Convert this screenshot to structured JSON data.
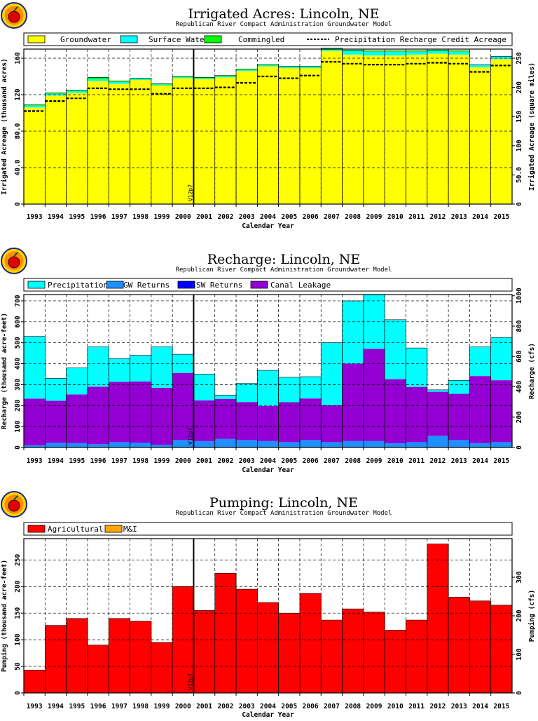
{
  "chart_data": [
    {
      "type": "bar",
      "title": "Irrigated Acres: Lincoln, NE",
      "subtitle": "Republican River Compact Administration Groundwater Model",
      "xlabel": "Calendar Year",
      "ylabel": "Irrigated Acreage (thousand acres)",
      "ylabel_right": "Irrigated Acreage (square miles)",
      "ylim": [
        0,
        170
      ],
      "y_ticks": [
        "0",
        "40.0",
        "80.0",
        "120",
        "160"
      ],
      "y_tick_values": [
        0,
        40,
        80,
        120,
        160
      ],
      "ylim_right": [
        0,
        265.6
      ],
      "y_ticks_right": [
        "0",
        "50.0",
        "100",
        "150",
        "200",
        "250"
      ],
      "y_tick_values_right": [
        0,
        50,
        100,
        150,
        200,
        250
      ],
      "categories": [
        "1993",
        "1994",
        "1995",
        "1996",
        "1997",
        "1998",
        "1999",
        "2000",
        "2001",
        "2002",
        "2003",
        "2004",
        "2005",
        "2006",
        "2007",
        "2008",
        "2009",
        "2010",
        "2011",
        "2012",
        "2013",
        "2014",
        "2015"
      ],
      "vline_label": "V12p7",
      "vline_x": 2000.5,
      "stacked": true,
      "series": [
        {
          "name": "Groundwater",
          "color": "#ffff00",
          "values": [
            106,
            119,
            122,
            135,
            132,
            136,
            130,
            138,
            137,
            139,
            146,
            151,
            149,
            149,
            168,
            164,
            163,
            163,
            164,
            165,
            164,
            150,
            159
          ]
        },
        {
          "name": "Surface Water",
          "color": "#00ffff",
          "values": [
            2,
            2,
            2,
            2,
            2,
            1,
            1,
            1,
            1,
            1,
            1,
            1,
            1,
            1,
            2,
            4,
            4,
            4,
            3,
            3,
            3,
            3,
            3
          ]
        },
        {
          "name": "Commingled",
          "color": "#00ff00",
          "values": [
            1,
            1,
            1,
            2,
            1,
            1,
            1,
            1,
            1,
            1,
            1,
            1,
            1,
            1,
            1,
            1,
            1,
            1,
            1,
            1,
            1,
            0,
            0
          ]
        }
      ],
      "line": {
        "name": "Precipitation Recharge Credit Acreage",
        "values": [
          102,
          113,
          116,
          127,
          126,
          126,
          121,
          127,
          127,
          128,
          133,
          140,
          138,
          141,
          156,
          154,
          153,
          153,
          154,
          155,
          154,
          145,
          152
        ]
      }
    },
    {
      "type": "bar",
      "title": "Recharge: Lincoln, NE",
      "subtitle": "Republican River Compact Administration Groundwater Model",
      "xlabel": "Calendar Year",
      "ylabel": "Recharge (thousand acre-feet)",
      "ylabel_right": "Recharge (cfs)",
      "ylim": [
        0,
        730
      ],
      "y_ticks": [
        "0",
        "100",
        "200",
        "300",
        "400",
        "500",
        "600",
        "700"
      ],
      "y_tick_values": [
        0,
        100,
        200,
        300,
        400,
        500,
        600,
        700
      ],
      "ylim_right": [
        0,
        1008
      ],
      "y_ticks_right": [
        "0",
        "200",
        "400",
        "600",
        "800",
        "1000"
      ],
      "y_tick_values_right": [
        0,
        200,
        400,
        600,
        800,
        1000
      ],
      "categories": [
        "1993",
        "1994",
        "1995",
        "1996",
        "1997",
        "1998",
        "1999",
        "2000",
        "2001",
        "2002",
        "2003",
        "2004",
        "2005",
        "2006",
        "2007",
        "2008",
        "2009",
        "2010",
        "2011",
        "2012",
        "2013",
        "2014",
        "2015"
      ],
      "vline_label": "V12p7",
      "vline_x": 2000.5,
      "stacked": true,
      "series": [
        {
          "name": "GW Returns",
          "color": "#1e90ff",
          "values": [
            10,
            22,
            20,
            15,
            25,
            22,
            12,
            35,
            30,
            40,
            35,
            30,
            25,
            35,
            25,
            30,
            30,
            20,
            25,
            55,
            35,
            20,
            25
          ]
        },
        {
          "name": "SW Returns",
          "color": "#0000ff",
          "values": [
            1,
            1,
            1,
            1,
            1,
            1,
            1,
            1,
            1,
            1,
            1,
            1,
            1,
            1,
            1,
            1,
            1,
            1,
            1,
            1,
            1,
            1,
            1
          ]
        },
        {
          "name": "Canal Leakage",
          "color": "#9400d3",
          "values": [
            222,
            200,
            232,
            274,
            287,
            292,
            272,
            320,
            194,
            190,
            181,
            167,
            190,
            198,
            176,
            370,
            440,
            305,
            263,
            210,
            220,
            320,
            295
          ]
        },
        {
          "name": "Precipitation",
          "color": "#00ffff",
          "values": [
            297,
            107,
            127,
            190,
            111,
            125,
            195,
            89,
            125,
            19,
            89,
            170,
            119,
            104,
            298,
            299,
            259,
            284,
            186,
            9,
            64,
            139,
            204
          ]
        }
      ]
    },
    {
      "type": "bar",
      "title": "Pumping: Lincoln, NE",
      "subtitle": "Republican River Compact Administration Groundwater Model",
      "xlabel": "Calendar Year",
      "ylabel": "Pumping (thousand acre-feet)",
      "ylabel_right": "Pumping (cfs)",
      "ylim": [
        0,
        290
      ],
      "y_ticks": [
        "0",
        "50",
        "100",
        "150",
        "200",
        "250"
      ],
      "y_tick_values": [
        0,
        50,
        100,
        150,
        200,
        250
      ],
      "ylim_right": [
        0,
        400
      ],
      "y_ticks_right": [
        "0",
        "100",
        "200",
        "300"
      ],
      "y_tick_values_right": [
        0,
        100,
        200,
        300
      ],
      "categories": [
        "1993",
        "1994",
        "1995",
        "1996",
        "1997",
        "1998",
        "1999",
        "2000",
        "2001",
        "2002",
        "2003",
        "2004",
        "2005",
        "2006",
        "2007",
        "2008",
        "2009",
        "2010",
        "2011",
        "2012",
        "2013",
        "2014",
        "2015"
      ],
      "vline_label": "V12p7",
      "vline_x": 2000.5,
      "stacked": true,
      "series": [
        {
          "name": "Agricultural",
          "color": "#ff0000",
          "values": [
            43,
            127,
            140,
            90,
            140,
            135,
            95,
            200,
            155,
            225,
            195,
            170,
            150,
            187,
            137,
            158,
            152,
            118,
            137,
            280,
            180,
            173,
            165
          ]
        },
        {
          "name": "M&I",
          "color": "#ffa500",
          "values": [
            0,
            0,
            0,
            0,
            0,
            0,
            0,
            0,
            0,
            0,
            0,
            0,
            0,
            0,
            0,
            0,
            0,
            0,
            0,
            0,
            0,
            0,
            0
          ]
        }
      ]
    }
  ]
}
